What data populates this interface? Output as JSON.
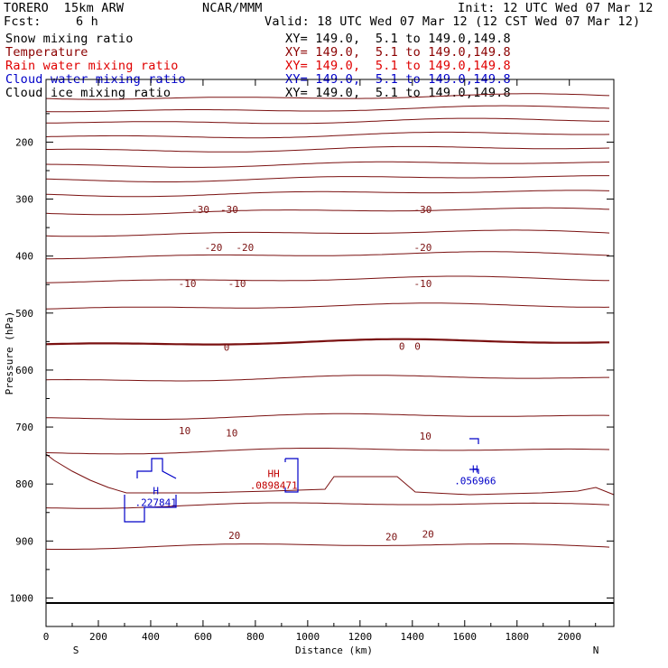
{
  "header": {
    "model": "TORERO  15km ARW",
    "center": "NCAR/MMM",
    "init": "Init: 12 UTC Wed 07 Mar 12",
    "fcst_label": "Fcst:",
    "fcst_value": "6 h",
    "valid": "Valid: 18 UTC Wed 07 Mar 12 (12 CST Wed 07 Mar 12)"
  },
  "fields": [
    {
      "name": "Snow mixing ratio",
      "xy": "XY= 149.0,  5.1 to 149.0,149.8",
      "color": "#000000"
    },
    {
      "name": "Temperature",
      "xy": "XY= 149.0,  5.1 to 149.0,149.8",
      "color": "#8b0000"
    },
    {
      "name": "Rain water mixing ratio",
      "xy": "XY= 149.0,  5.1 to 149.0,149.8",
      "color": "#e00000"
    },
    {
      "name": "Cloud water mixing ratio",
      "xy": "XY= 149.0,  5.1 to 149.0,149.8",
      "color": "#0000c8"
    },
    {
      "name": "Cloud ice mixing ratio",
      "xy": "XY= 149.0,  5.1 to 149.0,149.8",
      "color": "#000000"
    }
  ],
  "chart_data": {
    "type": "line",
    "xlabel": "Distance (km)",
    "ylabel": "Pressure (hPa)",
    "xlim": [
      0,
      2170
    ],
    "ylim": [
      1050,
      90
    ],
    "x_ticks": [
      0,
      200,
      400,
      600,
      800,
      1000,
      1200,
      1400,
      1600,
      1800,
      2000
    ],
    "y_ticks": [
      1000,
      900,
      800,
      700,
      600,
      500,
      400,
      300,
      200
    ],
    "x_end_labels": {
      "left": "S",
      "right": "N"
    },
    "isotherm_labels": [
      {
        "text": "-30",
        "x": 590,
        "p": 318
      },
      {
        "text": "-30",
        "x": 700,
        "p": 318
      },
      {
        "text": "-30",
        "x": 1440,
        "p": 318
      },
      {
        "text": "-20",
        "x": 640,
        "p": 385
      },
      {
        "text": "-20",
        "x": 760,
        "p": 385
      },
      {
        "text": "-20",
        "x": 1440,
        "p": 385
      },
      {
        "text": "-10",
        "x": 540,
        "p": 448
      },
      {
        "text": "-10",
        "x": 730,
        "p": 448
      },
      {
        "text": "-10",
        "x": 1440,
        "p": 448
      },
      {
        "text": "0",
        "x": 690,
        "p": 560
      },
      {
        "text": "0",
        "x": 1360,
        "p": 558
      },
      {
        "text": "0",
        "x": 1420,
        "p": 558
      },
      {
        "text": "10",
        "x": 530,
        "p": 706
      },
      {
        "text": "10",
        "x": 710,
        "p": 710
      },
      {
        "text": "10",
        "x": 1450,
        "p": 716
      },
      {
        "text": "20",
        "x": 720,
        "p": 890
      },
      {
        "text": "20",
        "x": 1320,
        "p": 892
      },
      {
        "text": "20",
        "x": 1460,
        "p": 888
      }
    ],
    "maxima": [
      {
        "text": "H",
        "value": ".227841",
        "x": 420,
        "p": 818,
        "color": "#0000c8"
      },
      {
        "text": "HH",
        "value": ".0898471",
        "x": 870,
        "p": 788,
        "color": "#c00000"
      },
      {
        "text": "H",
        "value": ".056966",
        "x": 1640,
        "p": 780,
        "color": "#0000c8"
      }
    ]
  }
}
